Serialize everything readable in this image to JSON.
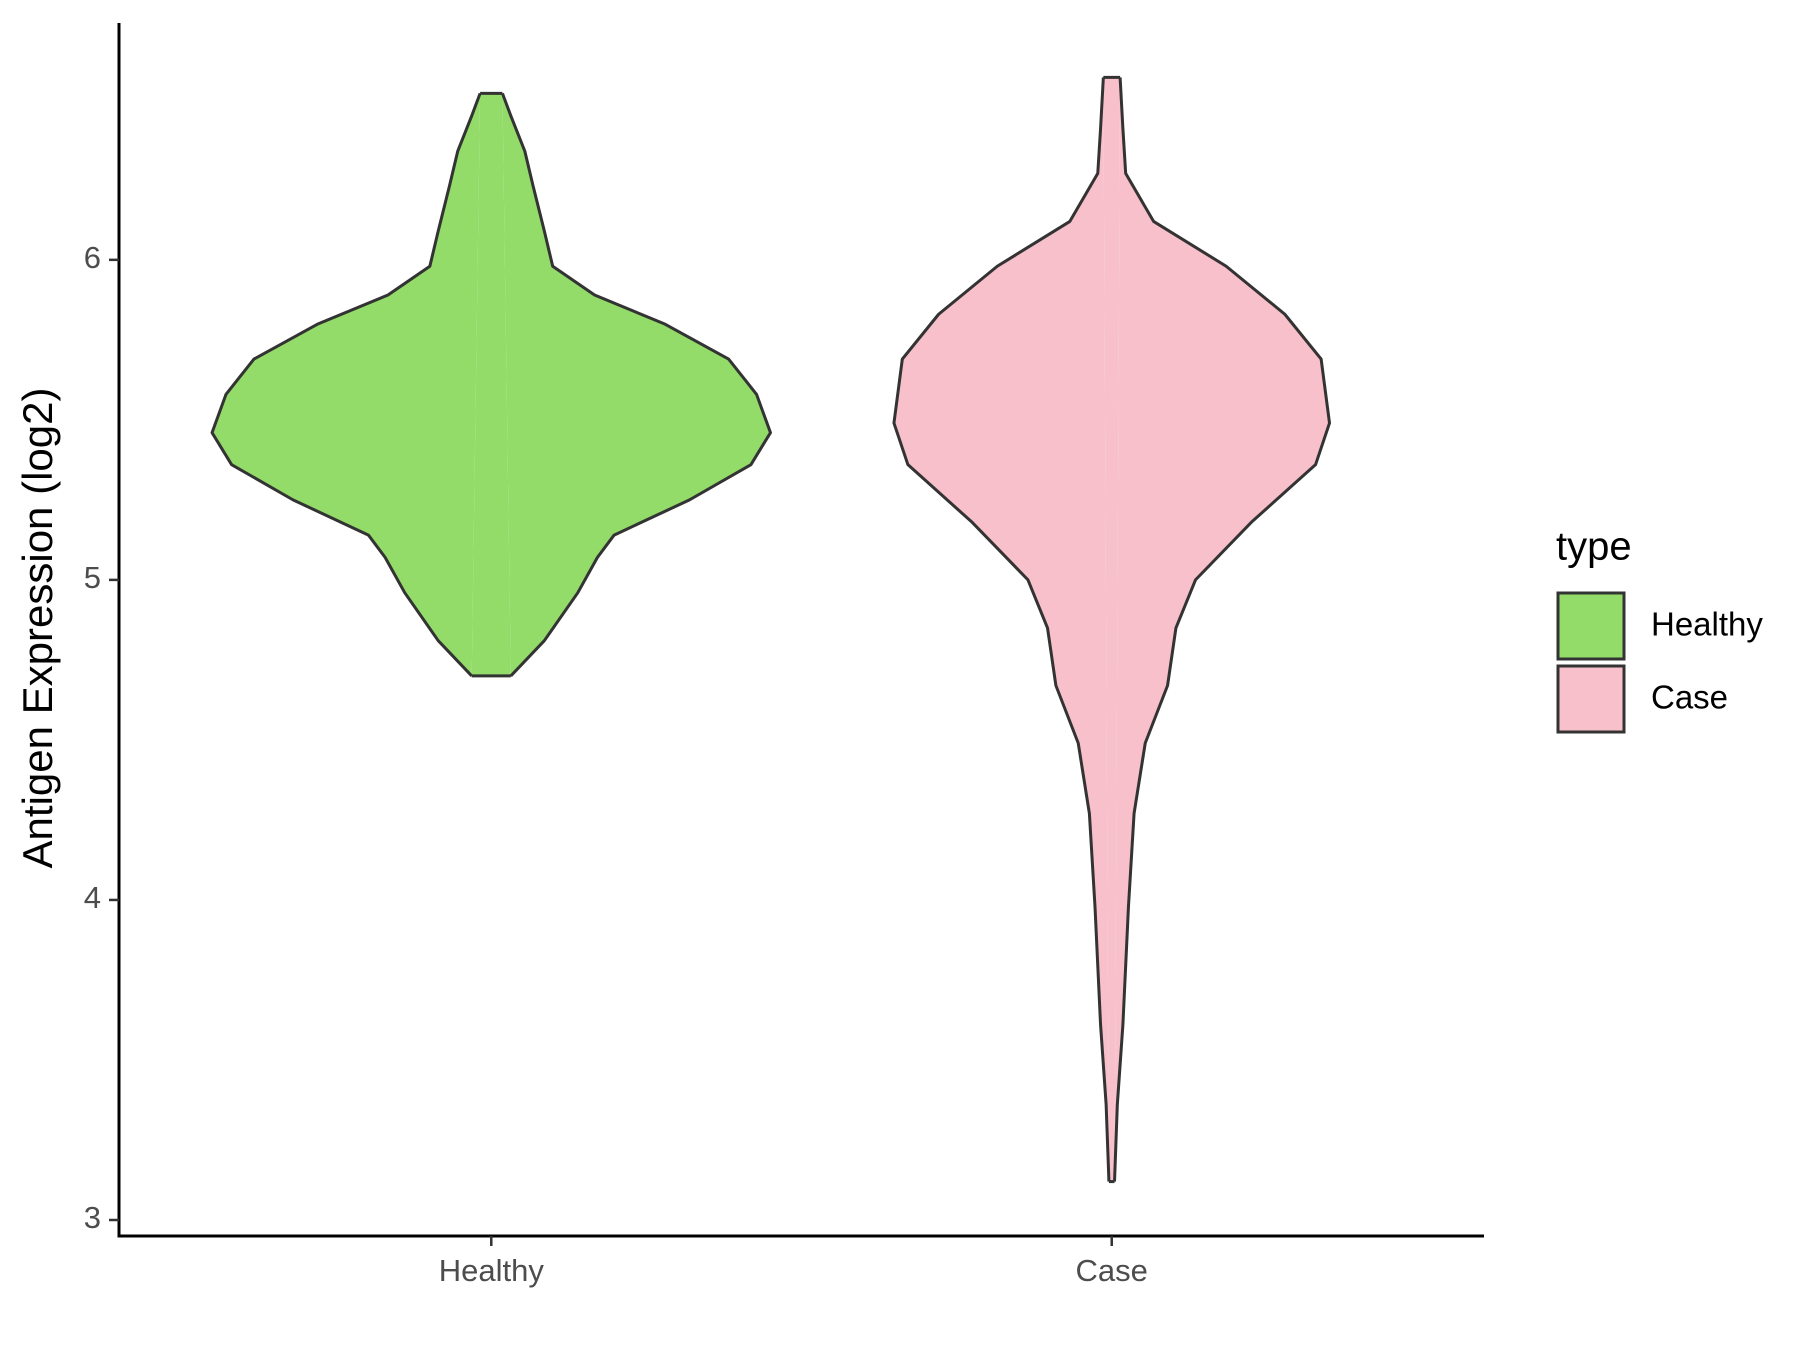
{
  "chart_data": {
    "type": "violin",
    "ylabel": "Antigen Expression (log2)",
    "legend_title": "type",
    "categories": [
      "Healthy",
      "Case"
    ],
    "series": [
      {
        "name": "Healthy",
        "color": "#93dc6a",
        "y": [
          6.52,
          6.45,
          6.34,
          6.23,
          6.09,
          5.98,
          5.89,
          5.8,
          5.69,
          5.58,
          5.46,
          5.36,
          5.25,
          5.14,
          5.07,
          4.96,
          4.81,
          4.7
        ],
        "density": [
          0.04,
          0.07,
          0.12,
          0.15,
          0.19,
          0.22,
          0.37,
          0.62,
          0.85,
          0.95,
          1.0,
          0.93,
          0.71,
          0.44,
          0.38,
          0.31,
          0.19,
          0.07
        ]
      },
      {
        "name": "Case",
        "color": "#f7c0cb",
        "y": [
          6.57,
          6.41,
          6.27,
          6.12,
          5.98,
          5.83,
          5.69,
          5.49,
          5.36,
          5.18,
          5.0,
          4.85,
          4.67,
          4.49,
          4.27,
          3.98,
          3.61,
          3.36,
          3.12
        ],
        "density": [
          0.03,
          0.04,
          0.05,
          0.15,
          0.41,
          0.62,
          0.75,
          0.78,
          0.73,
          0.5,
          0.3,
          0.23,
          0.2,
          0.12,
          0.08,
          0.06,
          0.04,
          0.02,
          0.01
        ]
      }
    ],
    "ylim": [
      2.95,
      6.74
    ],
    "yticks": [
      3,
      4,
      5,
      6
    ]
  }
}
